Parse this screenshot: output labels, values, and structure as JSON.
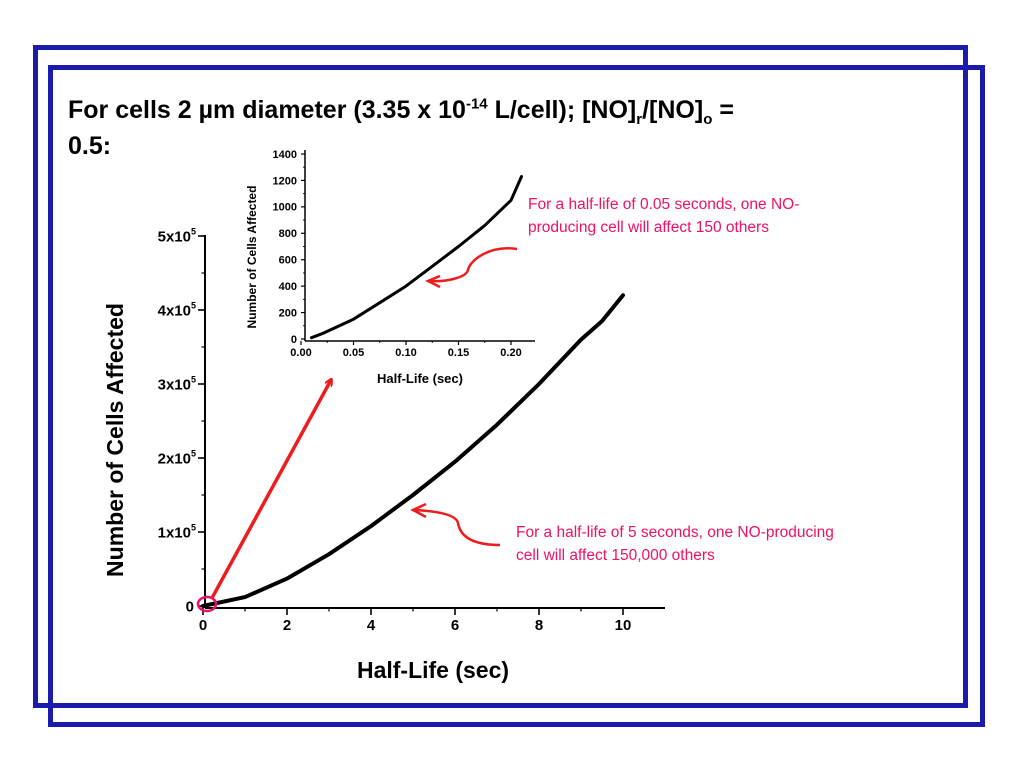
{
  "title": {
    "part1": "For cells 2 ",
    "mu": "µ",
    "part2": "m diameter (3.35 x 10",
    "exp": "-14",
    "part3": " L/cell); [NO]",
    "sub_r": "r",
    "part4": "/[NO]",
    "sub_o": "o",
    "part5": " =",
    "line2": "0.5:"
  },
  "callouts": {
    "inset": "For a half-life of 0.05 seconds, one NO-producing cell will affect 150 others",
    "main": "For a half-life of 5 seconds, one NO-producing cell will affect 150,000 others"
  },
  "colors": {
    "frame": "#1a1aad",
    "callout": "#ee1166",
    "arrow": "#ee1c1c",
    "line": "#000000"
  },
  "chart_data": [
    {
      "type": "line",
      "xlabel": "Half-Life (sec)",
      "ylabel": "Number of Cells Affected",
      "xlim": [
        0,
        11
      ],
      "ylim": [
        0,
        500000
      ],
      "x_ticks": [
        {
          "v": 0,
          "label": "0"
        },
        {
          "v": 2,
          "label": "2"
        },
        {
          "v": 4,
          "label": "4"
        },
        {
          "v": 6,
          "label": "6"
        },
        {
          "v": 8,
          "label": "8"
        },
        {
          "v": 10,
          "label": "10"
        }
      ],
      "y_ticks": [
        {
          "v": 0,
          "label": "0"
        },
        {
          "v": 100000,
          "label": "1x10",
          "exp": "5"
        },
        {
          "v": 200000,
          "label": "2x10",
          "exp": "5"
        },
        {
          "v": 300000,
          "label": "3x10",
          "exp": "5"
        },
        {
          "v": 400000,
          "label": "4x10",
          "exp": "5"
        },
        {
          "v": 500000,
          "label": "5x10",
          "exp": "5"
        }
      ],
      "series": [
        {
          "x": [
            0,
            1,
            2,
            3,
            4,
            5,
            6,
            7,
            8,
            9,
            9.5,
            10
          ],
          "y": [
            0,
            12000,
            37000,
            70000,
            108000,
            150000,
            195000,
            245000,
            300000,
            360000,
            385000,
            420000
          ]
        }
      ]
    },
    {
      "type": "line",
      "xlabel": "Half-Life (sec)",
      "ylabel": "Number of Cells Affected",
      "xlim": [
        0,
        0.22
      ],
      "ylim": [
        0,
        1400
      ],
      "x_ticks": [
        {
          "v": 0,
          "label": "0.00"
        },
        {
          "v": 0.05,
          "label": "0.05"
        },
        {
          "v": 0.1,
          "label": "0.10"
        },
        {
          "v": 0.15,
          "label": "0.15"
        },
        {
          "v": 0.2,
          "label": "0.20"
        }
      ],
      "y_ticks": [
        {
          "v": 0,
          "label": "0"
        },
        {
          "v": 200,
          "label": "200"
        },
        {
          "v": 400,
          "label": "400"
        },
        {
          "v": 600,
          "label": "600"
        },
        {
          "v": 800,
          "label": "800"
        },
        {
          "v": 1000,
          "label": "1000"
        },
        {
          "v": 1200,
          "label": "1200"
        },
        {
          "v": 1400,
          "label": "1400"
        }
      ],
      "series": [
        {
          "x": [
            0.01,
            0.02,
            0.05,
            0.075,
            0.1,
            0.125,
            0.15,
            0.175,
            0.2,
            0.21
          ],
          "y": [
            10,
            40,
            150,
            275,
            400,
            550,
            700,
            860,
            1050,
            1230
          ]
        }
      ]
    }
  ]
}
